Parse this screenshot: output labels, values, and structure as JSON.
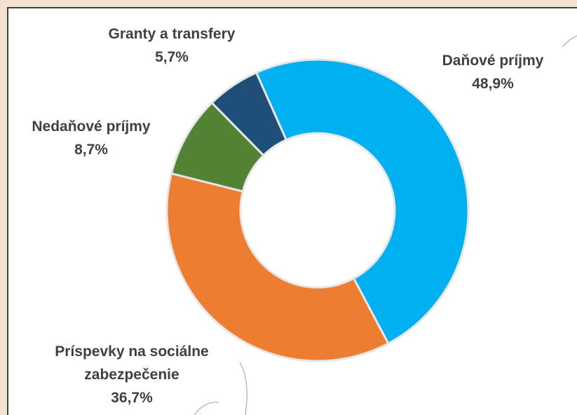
{
  "chart_data": {
    "type": "donut",
    "categories": [
      "Daňové príjmy",
      "Príspevky na sociálne zabezpečenie",
      "Nedaňové príjmy",
      "Granty a transfery"
    ],
    "values": [
      48.9,
      36.7,
      8.7,
      5.7
    ],
    "value_labels": [
      "48,9%",
      "36,7%",
      "8,7%",
      "5,7%"
    ],
    "colors": [
      "#00b0f0",
      "#ed7d31",
      "#548235",
      "#1f4e79"
    ]
  }
}
